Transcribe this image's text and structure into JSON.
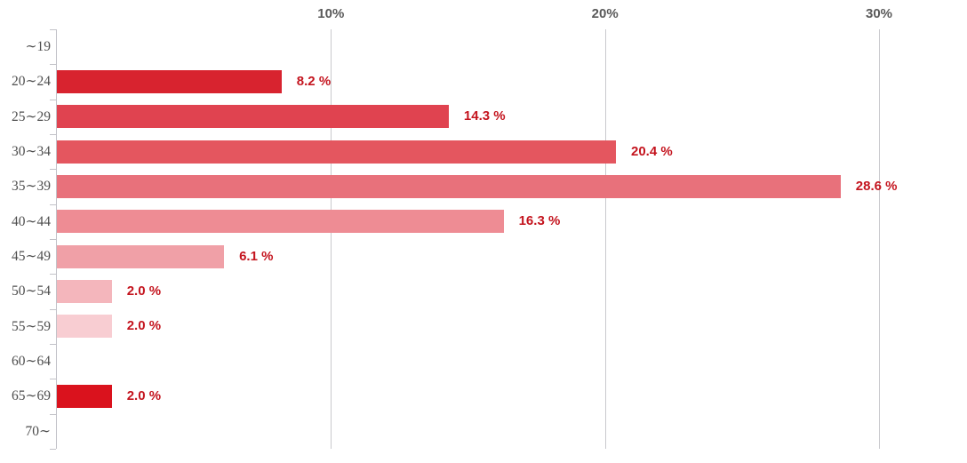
{
  "chart_data": {
    "type": "bar",
    "orientation": "horizontal",
    "title": "",
    "xlabel": "",
    "ylabel": "",
    "categories": [
      "〜19",
      "20〜24",
      "25〜29",
      "30〜34",
      "35〜39",
      "40〜44",
      "45〜49",
      "50〜54",
      "55〜59",
      "60〜64",
      "65〜69",
      "70〜"
    ],
    "values": [
      null,
      8.2,
      14.3,
      20.4,
      28.6,
      16.3,
      6.1,
      2.0,
      2.0,
      null,
      2.0,
      null
    ],
    "value_labels": [
      "",
      "8.2 %",
      "14.3 %",
      "20.4 %",
      "28.6 %",
      "16.3 %",
      "6.1 %",
      "2.0 %",
      "2.0 %",
      "",
      "2.0 %",
      ""
    ],
    "bar_colors": [
      "",
      "#d8232f",
      "#e04350",
      "#e4565f",
      "#e8717b",
      "#ee8c94",
      "#f0a0a7",
      "#f4b6bc",
      "#f8cdd2",
      "",
      "#da121d",
      ""
    ],
    "x_axis": {
      "min": 0,
      "max": 30,
      "ticks": [
        {
          "value": 10,
          "label": "10%"
        },
        {
          "value": 20,
          "label": "20%"
        },
        {
          "value": 30,
          "label": "30%"
        }
      ]
    },
    "grid": true,
    "legend": null,
    "colors": {
      "value_label": "#c4141e",
      "axis_tick_label": "#595959",
      "category_label": "#4d4d4d",
      "gridline": "#c9c9cd",
      "axis_line": "#c2c2c8"
    }
  }
}
